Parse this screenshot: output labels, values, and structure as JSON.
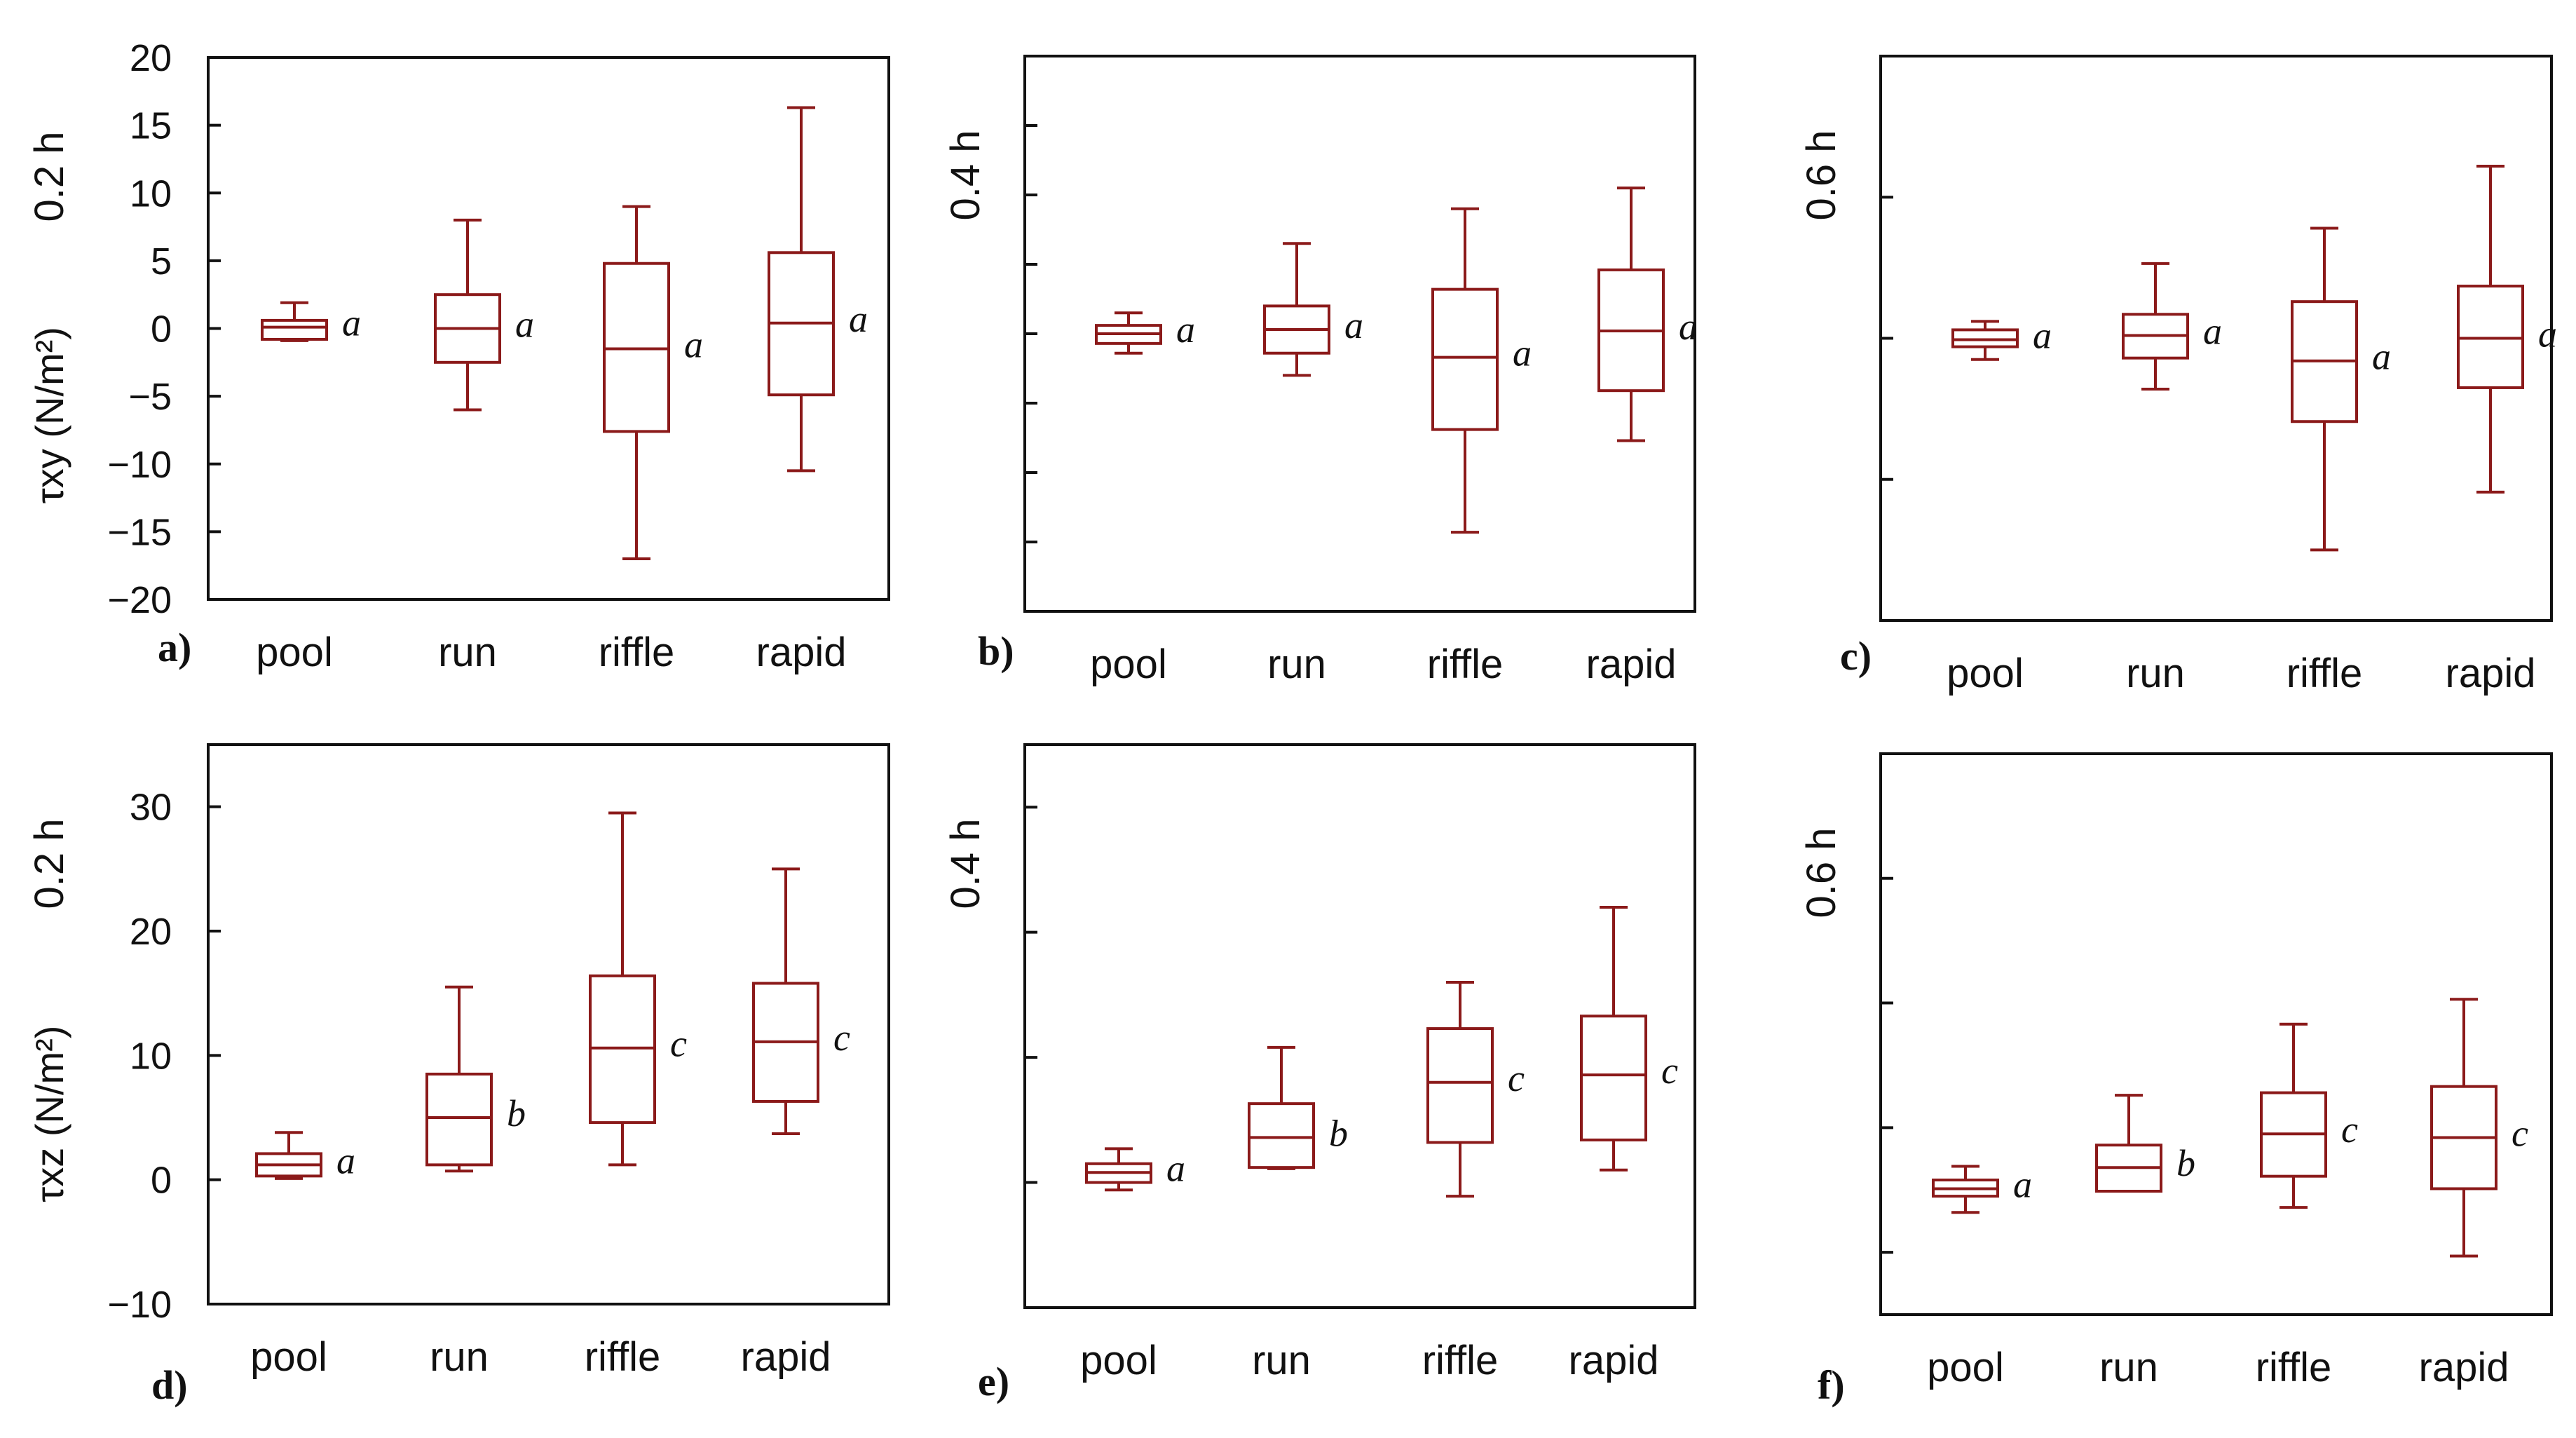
{
  "colors": {
    "box": "#8b1a1a",
    "frame": "#111111"
  },
  "chart_data": [
    {
      "id": "a",
      "type": "box",
      "panel_label": "a)",
      "depth_label": "0.2 h",
      "ylabel": "τxy (N/m²)",
      "ylim": [
        -20,
        20
      ],
      "show_tick_labels": true,
      "yticks": [
        -20,
        -15,
        -10,
        -5,
        0,
        5,
        10,
        15,
        20
      ],
      "ytick_labels": [
        "−20",
        "−15",
        "−10",
        "−5",
        "0",
        "5",
        "10",
        "15",
        "20"
      ],
      "categories": [
        "pool",
        "run",
        "riffle",
        "rapid"
      ],
      "boxes": [
        {
          "min": -0.9,
          "q1": -0.8,
          "median": 0.1,
          "q3": 0.6,
          "max": 1.9,
          "group": "a"
        },
        {
          "min": -6.0,
          "q1": -2.5,
          "median": 0.0,
          "q3": 2.5,
          "max": 8.0,
          "group": "a"
        },
        {
          "min": -17.0,
          "q1": -7.6,
          "median": -1.5,
          "q3": 4.8,
          "max": 9.0,
          "group": "a"
        },
        {
          "min": -10.5,
          "q1": -4.9,
          "median": 0.4,
          "q3": 5.6,
          "max": 16.3,
          "group": "a"
        }
      ]
    },
    {
      "id": "b",
      "type": "box",
      "panel_label": "b)",
      "depth_label": "0.4 h",
      "ylabel": "",
      "ylim": [
        -20,
        20
      ],
      "show_tick_labels": false,
      "yticks": [
        -15,
        -10,
        -5,
        0,
        5,
        10,
        15
      ],
      "ytick_labels": [],
      "categories": [
        "pool",
        "run",
        "riffle",
        "rapid"
      ],
      "boxes": [
        {
          "min": -1.4,
          "q1": -0.7,
          "median": 0.0,
          "q3": 0.6,
          "max": 1.5,
          "group": "a"
        },
        {
          "min": -3.0,
          "q1": -1.4,
          "median": 0.3,
          "q3": 2.0,
          "max": 6.5,
          "group": "a"
        },
        {
          "min": -14.3,
          "q1": -6.9,
          "median": -1.7,
          "q3": 3.2,
          "max": 9.0,
          "group": "a"
        },
        {
          "min": -7.7,
          "q1": -4.1,
          "median": 0.2,
          "q3": 4.6,
          "max": 10.5,
          "group": "a"
        }
      ]
    },
    {
      "id": "c",
      "type": "box",
      "panel_label": "c)",
      "depth_label": "0.6 h",
      "ylabel": "",
      "ylim": [
        -20,
        20
      ],
      "show_tick_labels": false,
      "yticks": [
        -10,
        0,
        10
      ],
      "ytick_labels": [],
      "categories": [
        "pool",
        "run",
        "riffle",
        "rapid"
      ],
      "boxes": [
        {
          "min": -1.5,
          "q1": -0.6,
          "median": -0.1,
          "q3": 0.6,
          "max": 1.2,
          "group": "a"
        },
        {
          "min": -3.6,
          "q1": -1.4,
          "median": 0.2,
          "q3": 1.7,
          "max": 5.3,
          "group": "a"
        },
        {
          "min": -15.0,
          "q1": -5.9,
          "median": -1.6,
          "q3": 2.6,
          "max": 7.8,
          "group": "a"
        },
        {
          "min": -10.9,
          "q1": -3.5,
          "median": 0.0,
          "q3": 3.7,
          "max": 12.2,
          "group": "a"
        }
      ]
    },
    {
      "id": "d",
      "type": "box",
      "panel_label": "d)",
      "depth_label": "0.2 h",
      "ylabel": "τxz (N/m²)",
      "ylim": [
        -10,
        35
      ],
      "show_tick_labels": true,
      "yticks": [
        -10,
        0,
        10,
        20,
        30
      ],
      "ytick_labels": [
        "−10",
        "0",
        "10",
        "20",
        "30"
      ],
      "categories": [
        "pool",
        "run",
        "riffle",
        "rapid"
      ],
      "boxes": [
        {
          "min": 0.1,
          "q1": 0.3,
          "median": 1.2,
          "q3": 2.1,
          "max": 3.8,
          "group": "a"
        },
        {
          "min": 0.7,
          "q1": 1.2,
          "median": 5.0,
          "q3": 8.5,
          "max": 15.5,
          "group": "b"
        },
        {
          "min": 1.2,
          "q1": 4.6,
          "median": 10.6,
          "q3": 16.4,
          "max": 29.5,
          "group": "c"
        },
        {
          "min": 3.7,
          "q1": 6.3,
          "median": 11.1,
          "q3": 15.8,
          "max": 25.0,
          "group": "c"
        }
      ]
    },
    {
      "id": "e",
      "type": "box",
      "panel_label": "e)",
      "depth_label": "0.4 h",
      "ylabel": "",
      "ylim": [
        -10,
        35
      ],
      "show_tick_labels": false,
      "yticks": [
        0,
        10,
        20,
        30
      ],
      "ytick_labels": [],
      "categories": [
        "pool",
        "run",
        "riffle",
        "rapid"
      ],
      "boxes": [
        {
          "min": -0.6,
          "q1": 0.0,
          "median": 0.8,
          "q3": 1.5,
          "max": 2.7,
          "group": "a"
        },
        {
          "min": 1.1,
          "q1": 1.2,
          "median": 3.6,
          "q3": 6.3,
          "max": 10.8,
          "group": "b"
        },
        {
          "min": -1.1,
          "q1": 3.2,
          "median": 8.0,
          "q3": 12.3,
          "max": 16.0,
          "group": "c"
        },
        {
          "min": 1.0,
          "q1": 3.4,
          "median": 8.6,
          "q3": 13.3,
          "max": 22.0,
          "group": "c"
        }
      ]
    },
    {
      "id": "f",
      "type": "box",
      "panel_label": "f)",
      "depth_label": "0.6 h",
      "ylabel": "",
      "ylim": [
        -10,
        35
      ],
      "show_tick_labels": false,
      "yticks": [
        -5,
        5,
        15,
        25
      ],
      "ytick_labels": [],
      "categories": [
        "pool",
        "run",
        "riffle",
        "rapid"
      ],
      "boxes": [
        {
          "min": -1.8,
          "q1": -0.5,
          "median": 0.1,
          "q3": 0.8,
          "max": 1.9,
          "group": "a"
        },
        {
          "min": -0.1,
          "q1": -0.1,
          "median": 1.8,
          "q3": 3.6,
          "max": 7.6,
          "group": "b"
        },
        {
          "min": -1.4,
          "q1": 1.1,
          "median": 4.5,
          "q3": 7.8,
          "max": 13.3,
          "group": "c"
        },
        {
          "min": -5.3,
          "q1": 0.1,
          "median": 4.2,
          "q3": 8.3,
          "max": 15.3,
          "group": "c"
        }
      ]
    }
  ]
}
